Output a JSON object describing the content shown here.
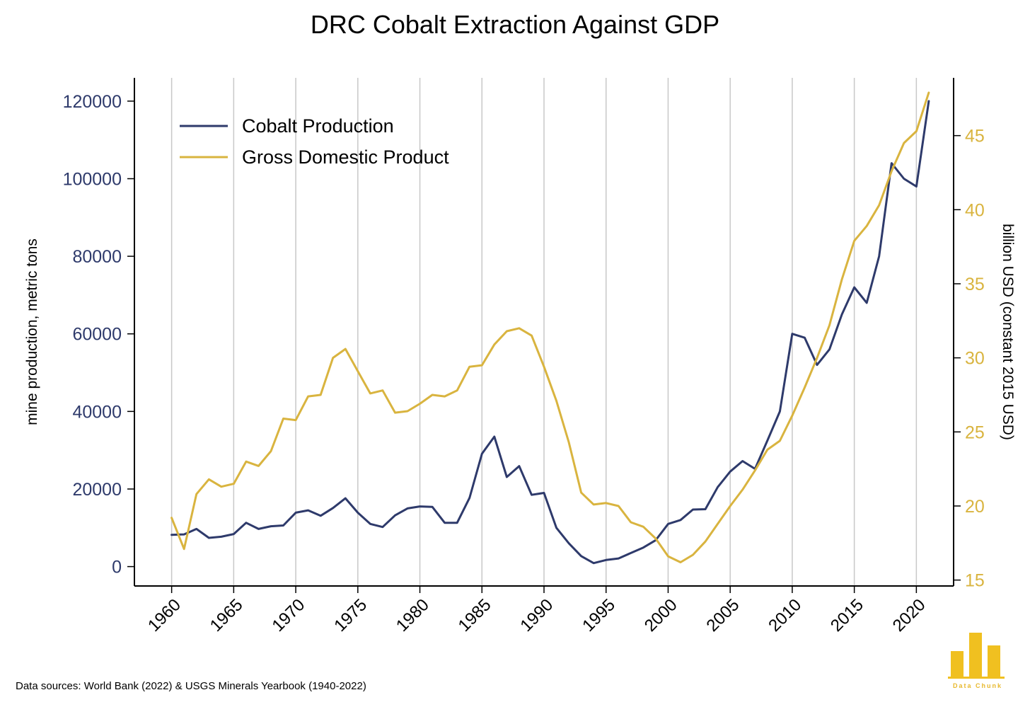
{
  "title": "DRC Cobalt Extraction Against GDP",
  "source": "Data sources: World Bank (2022) & USGS Minerals Yearbook (1940-2022)",
  "logo_text": "Data Chunk",
  "colors": {
    "cobalt": "#2e3a6b",
    "gdp": "#d9b43f",
    "grid": "#c8c8c8",
    "axis": "#000000"
  },
  "chart_data": {
    "type": "line",
    "title": "DRC Cobalt Extraction Against GDP",
    "xlabel": "",
    "ylabel": "mine production, metric tons",
    "y2label": "billion USD (constant 2015 USD)",
    "x": [
      1960,
      1961,
      1962,
      1963,
      1964,
      1965,
      1966,
      1967,
      1968,
      1969,
      1970,
      1971,
      1972,
      1973,
      1974,
      1975,
      1976,
      1977,
      1978,
      1979,
      1980,
      1981,
      1982,
      1983,
      1984,
      1985,
      1986,
      1987,
      1988,
      1989,
      1990,
      1991,
      1992,
      1993,
      1994,
      1995,
      1996,
      1997,
      1998,
      1999,
      2000,
      2001,
      2002,
      2003,
      2004,
      2005,
      2006,
      2007,
      2008,
      2009,
      2010,
      2011,
      2012,
      2013,
      2014,
      2015,
      2016,
      2017,
      2018,
      2019,
      2020,
      2021
    ],
    "xlim": [
      1957,
      2023
    ],
    "xticks": [
      "1960",
      "1965",
      "1970",
      "1975",
      "1980",
      "1985",
      "1990",
      "1995",
      "2000",
      "2005",
      "2010",
      "2015",
      "2020"
    ],
    "ylim": [
      -5000,
      126000
    ],
    "yticks": [
      "0",
      "20000",
      "40000",
      "60000",
      "80000",
      "100000",
      "120000"
    ],
    "y2lim": [
      14.6,
      48.9
    ],
    "y2ticks": [
      "15",
      "20",
      "25",
      "30",
      "35",
      "40",
      "45"
    ],
    "grid": "vertical",
    "legend": "top-left",
    "series": [
      {
        "name": "Cobalt Production",
        "axis": "left",
        "values": [
          8200,
          8300,
          9700,
          7400,
          7700,
          8400,
          11300,
          9700,
          10400,
          10600,
          13900,
          14500,
          13100,
          15100,
          17600,
          13900,
          11000,
          10200,
          13200,
          15000,
          15500,
          15400,
          11300,
          11300,
          17700,
          29100,
          33500,
          23100,
          25900,
          18500,
          19000,
          10000,
          6000,
          2700,
          900,
          1700,
          2100,
          3500,
          4900,
          6800,
          11000,
          12000,
          14700,
          14800,
          20500,
          24500,
          27200,
          25200,
          32500,
          40000,
          60000,
          59000,
          52000,
          56000,
          65000,
          72000,
          68000,
          80000,
          104000,
          100000,
          98000,
          120000
        ]
      },
      {
        "name": "Gross Domestic Product",
        "axis": "right",
        "values": [
          19.2,
          17.1,
          20.8,
          21.8,
          21.3,
          21.5,
          23.0,
          22.7,
          23.7,
          25.9,
          25.8,
          27.4,
          27.5,
          30.0,
          30.6,
          29.1,
          27.6,
          27.8,
          26.3,
          26.4,
          26.9,
          27.5,
          27.4,
          27.8,
          29.4,
          29.5,
          30.9,
          31.8,
          32.0,
          31.5,
          29.4,
          27.1,
          24.3,
          20.9,
          20.1,
          20.2,
          20.0,
          18.9,
          18.6,
          17.8,
          16.6,
          16.2,
          16.7,
          17.6,
          18.8,
          20.0,
          21.1,
          22.4,
          23.8,
          24.4,
          26.1,
          28.0,
          30.0,
          32.2,
          35.3,
          37.9,
          38.9,
          40.3,
          42.6,
          44.5,
          45.3,
          47.9
        ]
      }
    ]
  }
}
